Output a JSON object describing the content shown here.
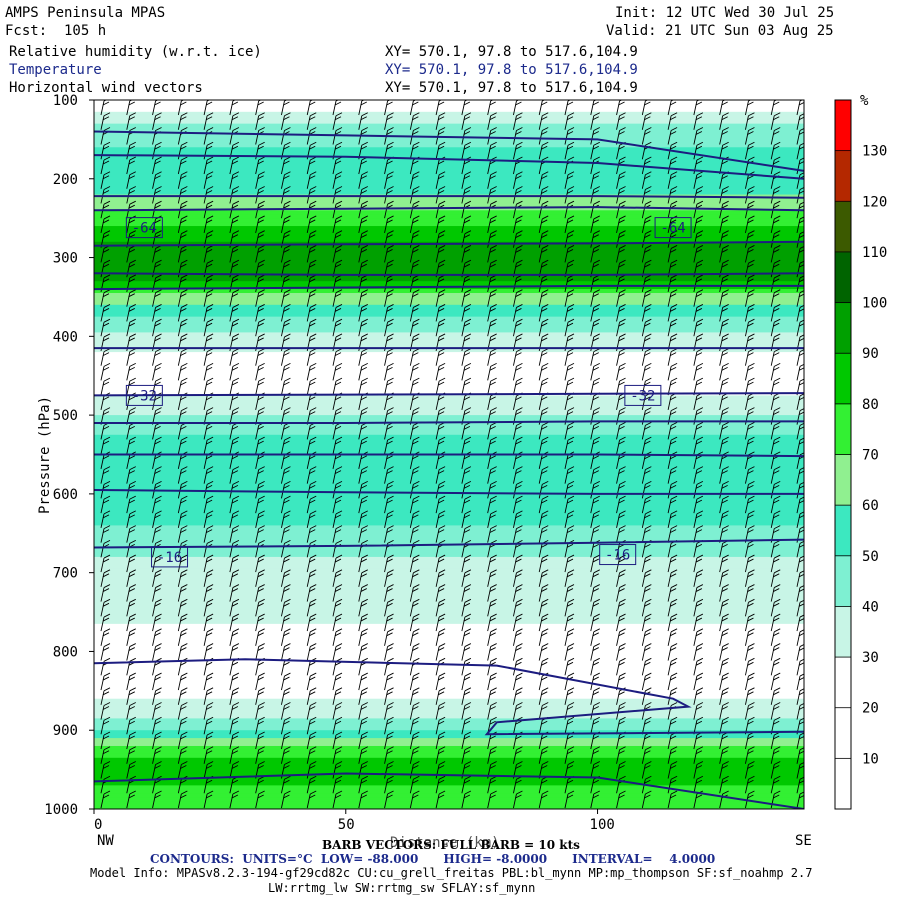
{
  "header": {
    "model": "AMPS Peninsula MPAS",
    "fcst": "Fcst:  105 h",
    "init": "Init: 12 UTC Wed 30 Jul 25",
    "valid": "Valid: 21 UTC Sun 03 Aug 25"
  },
  "fields": [
    {
      "name": "Relative humidity (w.r.t. ice)",
      "xy": "XY= 570.1, 97.8 to 517.6,104.9"
    },
    {
      "name": "Temperature",
      "xy": "XY= 570.1, 97.8 to 517.6,104.9"
    },
    {
      "name": "Horizontal wind vectors",
      "xy": "XY= 570.1, 97.8 to 517.6,104.9"
    }
  ],
  "footer": {
    "barb": "BARB VECTORS: FULL BARB = 10 kts",
    "distance_label": "Distance (km)",
    "contours": "CONTOURS:  UNITS=°C  LOW= -88.000      HIGH= -8.0000      INTERVAL=    4.0000",
    "model_info": "Model Info: MPASv8.2.3-194-gf29cd82c CU:cu_grell_freitas PBL:bl_mynn MP:mp_thompson SF:sf_noahmp 2.7",
    "model_info2": "LW:rrtmg_lw SW:rrtmg_sw SFLAY:sf_mynn"
  },
  "chart_data": {
    "type": "heatmap",
    "xlabel": "",
    "ylabel": "Pressure (hPa)",
    "xlim": [
      0,
      141
    ],
    "ylim": [
      1000,
      100
    ],
    "x_ticks": [
      0,
      50,
      100
    ],
    "y_ticks": [
      100,
      200,
      300,
      400,
      500,
      600,
      700,
      800,
      900,
      1000
    ],
    "x_end_labels": [
      "NW",
      "SE"
    ],
    "colorbar": {
      "unit": "%",
      "levels": [
        10,
        20,
        30,
        40,
        50,
        60,
        70,
        80,
        90,
        100,
        110,
        120,
        130
      ],
      "colors": [
        "#ffffff",
        "#ffffff",
        "#ffffff",
        "#c8f5e6",
        "#7ef0d2",
        "#3ce8c0",
        "#90f090",
        "#33f033",
        "#00c800",
        "#00a000",
        "#006400",
        "#3c5a00",
        "#b42800",
        "#ff0000"
      ]
    },
    "rh_profile": [
      {
        "p": 100,
        "rh": 20
      },
      {
        "p": 140,
        "rh": 45
      },
      {
        "p": 180,
        "rh": 55
      },
      {
        "p": 220,
        "rh": 60
      },
      {
        "p": 250,
        "rh": 75
      },
      {
        "p": 270,
        "rh": 85
      },
      {
        "p": 290,
        "rh": 95
      },
      {
        "p": 310,
        "rh": 100
      },
      {
        "p": 330,
        "rh": 90
      },
      {
        "p": 350,
        "rh": 65
      },
      {
        "p": 380,
        "rh": 45
      },
      {
        "p": 420,
        "rh": 30
      },
      {
        "p": 460,
        "rh": 25
      },
      {
        "p": 500,
        "rh": 40
      },
      {
        "p": 540,
        "rh": 55
      },
      {
        "p": 580,
        "rh": 60
      },
      {
        "p": 620,
        "rh": 55
      },
      {
        "p": 680,
        "rh": 40
      },
      {
        "p": 720,
        "rh": 35
      },
      {
        "p": 780,
        "rh": 28
      },
      {
        "p": 830,
        "rh": 22
      },
      {
        "p": 880,
        "rh": 35
      },
      {
        "p": 910,
        "rh": 60
      },
      {
        "p": 940,
        "rh": 85
      },
      {
        "p": 970,
        "rh": 80
      },
      {
        "p": 1000,
        "rh": 75
      }
    ],
    "temperature_contours": [
      {
        "value": -64,
        "x": [
          0,
          50,
          100,
          141
        ],
        "p": [
          285,
          283,
          282,
          280
        ]
      },
      {
        "value": -60,
        "x": [
          0,
          50,
          100,
          141
        ],
        "p": [
          240,
          238,
          236,
          240
        ]
      },
      {
        "value": -56,
        "x": [
          0,
          50,
          100,
          141
        ],
        "p": [
          222,
          222,
          222,
          224
        ]
      },
      {
        "value": -52,
        "x": [
          0,
          50,
          100,
          141
        ],
        "p": [
          170,
          172,
          180,
          200
        ]
      },
      {
        "value": -48,
        "x": [
          0,
          50,
          100,
          141
        ],
        "p": [
          140,
          145,
          150,
          190
        ]
      },
      {
        "value": -44,
        "x": [
          0,
          50,
          100,
          141
        ],
        "p": [
          320,
          322,
          322,
          320
        ]
      },
      {
        "value": -40,
        "x": [
          0,
          50,
          100,
          141
        ],
        "p": [
          340,
          338,
          336,
          336
        ]
      },
      {
        "value": -36,
        "x": [
          0,
          50,
          100,
          141
        ],
        "p": [
          415,
          415,
          415,
          415
        ]
      },
      {
        "value": -32,
        "x": [
          0,
          50,
          100,
          141
        ],
        "p": [
          475,
          474,
          473,
          472
        ]
      },
      {
        "value": -28,
        "x": [
          0,
          50,
          100,
          141
        ],
        "p": [
          510,
          510,
          508,
          508
        ]
      },
      {
        "value": -24,
        "x": [
          0,
          50,
          100,
          141
        ],
        "p": [
          550,
          550,
          550,
          552
        ]
      },
      {
        "value": -20,
        "x": [
          0,
          50,
          100,
          141
        ],
        "p": [
          595,
          598,
          600,
          600
        ]
      },
      {
        "value": -16,
        "x": [
          0,
          50,
          100,
          141
        ],
        "p": [
          668,
          666,
          662,
          658
        ]
      },
      {
        "value": -12,
        "x": [
          0,
          30,
          80,
          115,
          118,
          80,
          78,
          141
        ],
        "p": [
          815,
          810,
          818,
          860,
          870,
          890,
          905,
          902
        ]
      },
      {
        "value": -8,
        "x": [
          0,
          50,
          100,
          141
        ],
        "p": [
          965,
          955,
          960,
          1000
        ]
      }
    ],
    "contour_labels": [
      {
        "text": "-64",
        "x": 10,
        "p": 262
      },
      {
        "text": "-64",
        "x": 115,
        "p": 262
      },
      {
        "text": "-32",
        "x": 10,
        "p": 475
      },
      {
        "text": "-32",
        "x": 109,
        "p": 475
      },
      {
        "text": "-16",
        "x": 15,
        "p": 680
      },
      {
        "text": "-16",
        "x": 104,
        "p": 677
      }
    ],
    "wind_barb_direction": "northwesterly",
    "full_barb_kts": 10
  }
}
